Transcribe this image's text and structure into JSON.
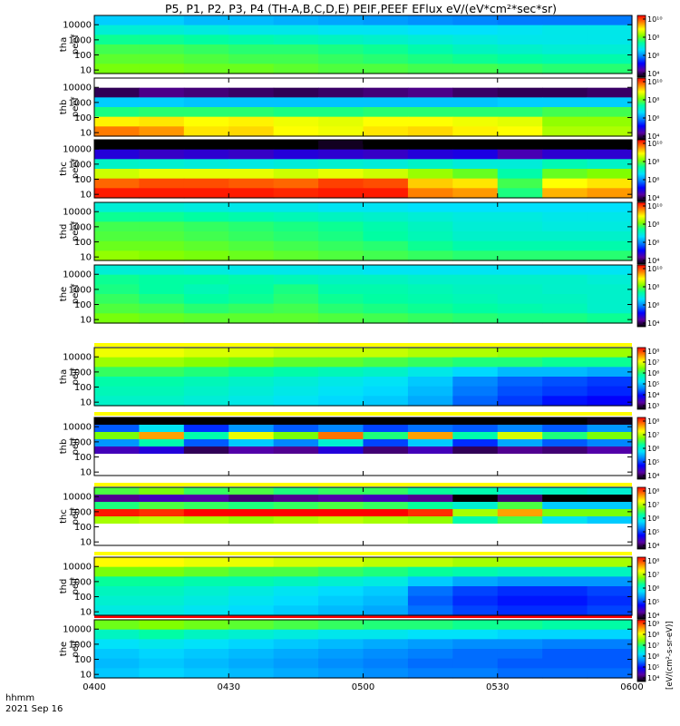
{
  "chart_data": {
    "type": "heatmap",
    "title": "P5, P1, P2, P3, P4 (TH-A,B,C,D,E) PEIF,PEEF EFlux eV/(eV*cm²*sec*sr)",
    "x_ticks": [
      "0400",
      "0430",
      "0500",
      "0530",
      "0600"
    ],
    "x_range": [
      "0400",
      "0600"
    ],
    "x_units": "hhmm",
    "date_label": "2021 Sep 16",
    "colorbar_label": "[eV/(cm²-s-sr-eV)]",
    "colormap": [
      "#000000",
      "#5a00a0",
      "#0000ff",
      "#0080ff",
      "#00e0ff",
      "#00ffa0",
      "#80ff00",
      "#ffff00",
      "#ff8000",
      "#ff0000"
    ],
    "panels": [
      {
        "probe": "tha",
        "species": "peef",
        "y_ticks": [
          "10",
          "100",
          "1000",
          "10000"
        ],
        "colorbar_ticks": [
          "10⁴",
          "10⁶",
          "10⁸",
          "10¹⁰"
        ],
        "rows": [
          [
            5.6,
            5.6,
            5.4,
            5.4,
            5.3,
            5.2,
            5.1,
            5.0,
            4.9,
            4.8,
            4.8,
            4.8
          ],
          [
            6.2,
            6.2,
            6.1,
            6.0,
            6.0,
            5.9,
            5.9,
            5.8,
            5.8,
            5.9,
            6.0,
            6.0
          ],
          [
            6.8,
            6.8,
            6.7,
            6.6,
            6.5,
            6.4,
            6.3,
            6.2,
            6.1,
            6.0,
            6.0,
            6.0
          ],
          [
            7.2,
            7.2,
            7.1,
            7.0,
            7.0,
            6.9,
            6.8,
            6.6,
            6.4,
            6.3,
            6.2,
            6.2
          ],
          [
            7.4,
            7.4,
            7.3,
            7.2,
            7.2,
            7.1,
            7.0,
            6.9,
            6.8,
            6.7,
            6.6,
            6.6
          ],
          [
            7.6,
            7.6,
            7.5,
            7.5,
            7.4,
            7.3,
            7.3,
            7.2,
            7.2,
            7.1,
            7.0,
            7.0
          ]
        ]
      },
      {
        "probe": "thb",
        "species": "peef",
        "y_ticks": [
          "10",
          "100",
          "1000",
          "10000"
        ],
        "colorbar_ticks": [
          "10⁴",
          "10⁶",
          "10⁸",
          "10¹⁰"
        ],
        "rows": [
          [
            null,
            null,
            null,
            null,
            null,
            null,
            null,
            null,
            null,
            null,
            null,
            null
          ],
          [
            2.5,
            2.8,
            2.7,
            2.6,
            2.5,
            2.6,
            2.7,
            2.8,
            2.6,
            2.5,
            2.5,
            2.6
          ],
          [
            5.6,
            5.6,
            5.5,
            5.5,
            5.5,
            5.5,
            5.5,
            5.5,
            5.5,
            5.6,
            5.6,
            5.6
          ],
          [
            6.9,
            7.0,
            7.0,
            7.0,
            6.9,
            6.9,
            7.0,
            7.0,
            7.0,
            7.0,
            7.2,
            7.2
          ],
          [
            8.7,
            8.8,
            8.6,
            8.7,
            8.5,
            8.4,
            8.6,
            8.6,
            8.5,
            8.4,
            7.8,
            7.8
          ],
          [
            9.6,
            9.4,
            8.8,
            8.9,
            8.6,
            8.5,
            8.8,
            8.9,
            8.7,
            8.6,
            8.0,
            8.0
          ]
        ]
      },
      {
        "probe": "thc",
        "species": "peef",
        "y_ticks": [
          "10",
          "100",
          "1000",
          "10000"
        ],
        "colorbar_ticks": [
          "10⁴",
          "10⁶",
          "10⁸",
          "10¹⁰"
        ],
        "rows": [
          [
            1.0,
            1.0,
            1.0,
            1.0,
            1.0,
            1.2,
            1.0,
            1.0,
            1.0,
            1.0,
            1.0,
            1.0
          ],
          [
            2.6,
            2.4,
            2.5,
            2.4,
            2.6,
            2.5,
            2.4,
            2.6,
            2.7,
            2.2,
            2.5,
            2.5
          ],
          [
            5.6,
            5.5,
            5.4,
            5.3,
            5.4,
            5.5,
            5.4,
            5.6,
            5.4,
            5.4,
            5.8,
            5.6
          ],
          [
            7.6,
            7.8,
            7.8,
            7.8,
            7.6,
            7.8,
            7.6,
            7.2,
            6.8,
            5.9,
            6.8,
            7.0
          ],
          [
            9.2,
            9.4,
            9.4,
            9.3,
            9.2,
            9.5,
            9.4,
            8.4,
            8.2,
            6.5,
            8.0,
            8.2
          ],
          [
            9.8,
            9.8,
            9.8,
            9.8,
            9.7,
            9.8,
            9.8,
            9.0,
            8.8,
            6.2,
            8.6,
            8.8
          ]
        ]
      },
      {
        "probe": "thd",
        "species": "peef",
        "y_ticks": [
          "10",
          "100",
          "1000",
          "10000"
        ],
        "colorbar_ticks": [
          "10⁴",
          "10⁶",
          "10⁸",
          "10¹⁰"
        ],
        "rows": [
          [
            6.2,
            6.2,
            6.1,
            6.0,
            6.0,
            5.9,
            5.9,
            5.8,
            5.8,
            5.8,
            5.8,
            5.8
          ],
          [
            6.8,
            6.8,
            6.7,
            6.6,
            6.5,
            6.4,
            6.3,
            6.2,
            6.1,
            6.1,
            6.0,
            6.0
          ],
          [
            7.2,
            7.2,
            7.1,
            7.0,
            6.9,
            6.8,
            6.6,
            6.4,
            6.2,
            6.2,
            6.1,
            6.1
          ],
          [
            7.3,
            7.3,
            7.2,
            7.1,
            7.0,
            6.9,
            6.7,
            6.5,
            6.3,
            6.3,
            6.3,
            6.3
          ],
          [
            7.5,
            7.5,
            7.4,
            7.3,
            7.2,
            7.1,
            7.0,
            6.8,
            6.6,
            6.6,
            6.6,
            6.6
          ],
          [
            7.8,
            7.7,
            7.6,
            7.5,
            7.4,
            7.3,
            7.2,
            7.1,
            7.0,
            7.0,
            7.0,
            7.0
          ]
        ]
      },
      {
        "probe": "the",
        "species": "peef",
        "y_ticks": [
          "10",
          "100",
          "1000",
          "10000"
        ],
        "colorbar_ticks": [
          "10⁴",
          "10⁶",
          "10⁸",
          "10¹⁰"
        ],
        "rows": [
          [
            6.2,
            6.2,
            6.1,
            6.0,
            6.0,
            6.0,
            5.9,
            5.9,
            5.9,
            5.9,
            5.9,
            5.9
          ],
          [
            6.8,
            6.7,
            6.7,
            6.6,
            6.5,
            6.4,
            6.4,
            6.3,
            6.3,
            6.3,
            6.3,
            6.2
          ],
          [
            6.9,
            6.7,
            6.5,
            6.7,
            6.9,
            6.6,
            6.6,
            6.5,
            6.4,
            6.4,
            6.3,
            6.3
          ],
          [
            7.1,
            6.9,
            6.7,
            6.8,
            7.0,
            6.8,
            6.7,
            6.6,
            6.5,
            6.4,
            6.4,
            6.3
          ],
          [
            7.3,
            7.2,
            7.0,
            7.1,
            7.2,
            7.0,
            6.9,
            6.8,
            6.7,
            6.6,
            6.5,
            6.3
          ],
          [
            7.6,
            7.5,
            7.4,
            7.4,
            7.4,
            7.3,
            7.2,
            7.1,
            7.0,
            6.9,
            6.9,
            6.8
          ]
        ]
      },
      {
        "probe": "tha",
        "species": "peif",
        "y_ticks": [
          "10",
          "100",
          "1000",
          "10000"
        ],
        "colorbar_ticks": [
          "10³",
          "10⁴",
          "10⁵",
          "10⁶",
          "10⁷",
          "10⁸"
        ],
        "rows": [
          [
            7.2,
            7.2,
            7.1,
            7.1,
            7.0,
            7.0,
            7.0,
            6.9,
            6.9,
            6.8,
            6.8,
            6.8
          ],
          [
            6.8,
            6.8,
            6.7,
            6.6,
            6.5,
            6.5,
            6.4,
            6.3,
            6.2,
            6.2,
            6.1,
            6.1
          ],
          [
            6.3,
            6.3,
            6.2,
            6.1,
            6.0,
            5.9,
            5.8,
            5.6,
            5.4,
            5.2,
            5.2,
            5.1
          ],
          [
            6.0,
            6.0,
            5.9,
            5.8,
            5.7,
            5.6,
            5.5,
            5.3,
            4.9,
            4.7,
            4.6,
            4.5
          ],
          [
            5.9,
            5.9,
            5.8,
            5.7,
            5.6,
            5.5,
            5.4,
            5.2,
            4.8,
            4.6,
            4.5,
            4.4
          ],
          [
            5.8,
            5.8,
            5.7,
            5.6,
            5.5,
            5.4,
            5.3,
            5.1,
            4.7,
            4.5,
            4.3,
            4.2
          ]
        ]
      },
      {
        "probe": "thb",
        "species": "peif",
        "y_ticks": [
          "10",
          "100",
          "1000",
          "10000"
        ],
        "colorbar_ticks": [
          "10⁴",
          "10⁵",
          "10⁶",
          "10⁷",
          "10⁸"
        ],
        "rows": [
          [
            3.4,
            3.5,
            3.2,
            3.3,
            3.4,
            3.5,
            3.4,
            3.3,
            3.5,
            3.4,
            3.3,
            3.6
          ],
          [
            5.0,
            5.8,
            4.8,
            5.3,
            5.0,
            5.2,
            4.9,
            5.1,
            5.0,
            5.2,
            5.0,
            5.3
          ],
          [
            6.8,
            7.8,
            6.2,
            7.3,
            6.8,
            8.0,
            6.4,
            7.8,
            6.2,
            7.2,
            6.4,
            6.8
          ],
          [
            5.3,
            6.2,
            5.0,
            5.6,
            5.2,
            6.0,
            4.9,
            5.6,
            4.8,
            5.4,
            5.0,
            5.2
          ],
          [
            4.2,
            4.4,
            3.8,
            4.1,
            4.0,
            4.4,
            3.9,
            4.2,
            3.8,
            4.0,
            3.9,
            4.1
          ],
          [
            null,
            null,
            null,
            null,
            null,
            null,
            null,
            null,
            null,
            null,
            null,
            null
          ],
          [
            null,
            null,
            null,
            null,
            null,
            null,
            null,
            null,
            null,
            null,
            null,
            null
          ],
          [
            null,
            null,
            null,
            null,
            null,
            null,
            null,
            null,
            null,
            null,
            null,
            null
          ]
        ]
      },
      {
        "probe": "thc",
        "species": "peif",
        "y_ticks": [
          "10",
          "100",
          "1000",
          "10000"
        ],
        "colorbar_ticks": [
          "10⁴",
          "10⁵",
          "10⁶",
          "10⁷",
          "10⁸"
        ],
        "rows": [
          [
            6.6,
            6.8,
            6.5,
            6.6,
            6.4,
            6.5,
            6.5,
            6.3,
            6.2,
            6.0,
            6.1,
            6.0
          ],
          [
            4.0,
            4.2,
            4.1,
            3.9,
            4.0,
            4.1,
            4.2,
            4.0,
            3.5,
            3.9,
            3.4,
            3.3
          ],
          [
            6.4,
            6.6,
            6.5,
            6.4,
            6.5,
            6.6,
            6.5,
            6.3,
            6.0,
            6.6,
            5.6,
            5.6
          ],
          [
            8.4,
            8.3,
            8.5,
            8.5,
            8.5,
            8.5,
            8.5,
            8.3,
            7.0,
            7.8,
            6.8,
            6.8
          ],
          [
            7.0,
            7.1,
            7.0,
            6.9,
            7.0,
            7.1,
            7.0,
            6.9,
            6.2,
            6.6,
            5.8,
            5.6
          ],
          [
            null,
            null,
            null,
            null,
            null,
            null,
            null,
            null,
            null,
            null,
            null,
            null
          ],
          [
            null,
            null,
            null,
            null,
            null,
            null,
            null,
            null,
            null,
            null,
            null,
            null
          ],
          [
            null,
            null,
            null,
            null,
            null,
            null,
            null,
            null,
            null,
            null,
            null,
            null
          ]
        ]
      },
      {
        "probe": "thd",
        "species": "peif",
        "y_ticks": [
          "10",
          "100",
          "1000",
          "10000"
        ],
        "colorbar_ticks": [
          "10⁴",
          "10⁵",
          "10⁶",
          "10⁷",
          "10⁸"
        ],
        "rows": [
          [
            7.4,
            7.4,
            7.3,
            7.3,
            7.2,
            7.2,
            7.1,
            7.1,
            7.0,
            7.0,
            7.0,
            7.0
          ],
          [
            6.8,
            6.8,
            6.7,
            6.6,
            6.6,
            6.5,
            6.4,
            6.3,
            6.2,
            6.1,
            6.1,
            6.1
          ],
          [
            6.3,
            6.3,
            6.2,
            6.2,
            6.1,
            6.0,
            5.9,
            5.6,
            5.4,
            5.3,
            5.3,
            5.3
          ],
          [
            6.1,
            6.1,
            6.0,
            5.9,
            5.8,
            5.7,
            5.6,
            5.1,
            4.9,
            4.8,
            4.8,
            4.9
          ],
          [
            6.0,
            6.0,
            5.9,
            5.8,
            5.7,
            5.6,
            5.5,
            5.0,
            4.8,
            4.7,
            4.7,
            4.8
          ],
          [
            5.9,
            5.9,
            5.8,
            5.7,
            5.6,
            5.5,
            5.4,
            5.1,
            4.9,
            4.8,
            4.8,
            4.9
          ]
        ]
      },
      {
        "probe": "the",
        "species": "peif",
        "y_ticks": [
          "10",
          "100",
          "1000",
          "10000"
        ],
        "colorbar_ticks": [
          "10⁴",
          "10⁵",
          "10⁶",
          "10⁷",
          "10⁸",
          "10⁹"
        ],
        "rows": [
          [
            7.4,
            7.5,
            7.4,
            7.3,
            7.2,
            7.1,
            7.0,
            7.0,
            6.9,
            6.9,
            6.8,
            6.8
          ],
          [
            6.6,
            6.8,
            6.6,
            6.5,
            6.4,
            6.3,
            6.3,
            6.2,
            6.2,
            6.1,
            6.1,
            6.1
          ],
          [
            6.2,
            6.3,
            6.2,
            6.1,
            6.0,
            5.9,
            5.8,
            5.7,
            5.6,
            5.6,
            5.5,
            5.5
          ],
          [
            6.0,
            6.1,
            6.0,
            5.9,
            5.8,
            5.7,
            5.6,
            5.5,
            5.4,
            5.4,
            5.3,
            5.3
          ],
          [
            5.9,
            6.0,
            5.9,
            5.8,
            5.7,
            5.6,
            5.5,
            5.4,
            5.4,
            5.3,
            5.3,
            5.3
          ],
          [
            6.0,
            6.1,
            6.0,
            5.9,
            5.8,
            5.7,
            5.6,
            5.5,
            5.5,
            5.4,
            5.4,
            5.4
          ]
        ]
      }
    ]
  }
}
